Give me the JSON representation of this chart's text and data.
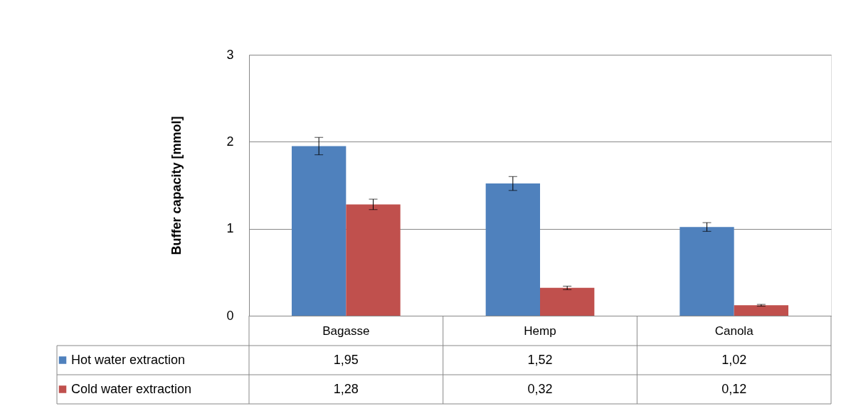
{
  "chart_data": {
    "type": "bar",
    "ylabel": "Buffer capacity [mmol]",
    "categories": [
      "Bagasse",
      "Hemp",
      "Canola"
    ],
    "series": [
      {
        "name": "Hot water extraction",
        "color": "#4f81bd",
        "values": [
          1.95,
          1.52,
          1.02
        ],
        "errors": [
          0.1,
          0.08,
          0.05
        ],
        "value_labels": [
          "1,95",
          "1,52",
          "1,02"
        ]
      },
      {
        "name": "Cold water extraction",
        "color": "#c0504d",
        "values": [
          1.28,
          0.32,
          0.12
        ],
        "errors": [
          0.06,
          0.02,
          0.01
        ],
        "value_labels": [
          "1,28",
          "0,32",
          "0,12"
        ]
      }
    ],
    "ylim": [
      0,
      3
    ],
    "yticks": [
      0,
      1,
      2,
      3
    ],
    "grid": "y",
    "legend": "bottom"
  }
}
